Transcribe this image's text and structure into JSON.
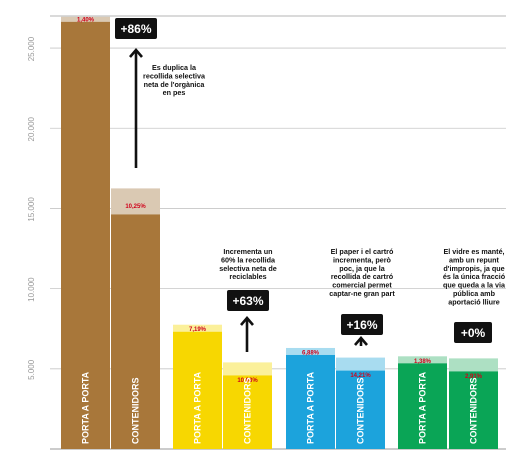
{
  "chart_data": {
    "type": "bar",
    "y_ticks": [
      "5.000",
      "10.000",
      "15.000",
      "20.000",
      "25.000"
    ],
    "ylim": [
      0,
      27000
    ],
    "grid": true,
    "groups": [
      {
        "color": "#a8773a",
        "imp_color": "#dac9b3",
        "badge": "+86%",
        "note": [
          "Es duplica la",
          "recollida selectiva",
          "neta de l'orgànica",
          "en pes"
        ],
        "bars": [
          {
            "label": "PORTA A PORTA",
            "total": 26950,
            "impropis_pct": "1,40%"
          },
          {
            "label": "CONTENIDORS",
            "total": 16250,
            "impropis_pct": "10,25%"
          }
        ]
      },
      {
        "color": "#f7d701",
        "imp_color": "#fbf09a",
        "badge": "+63%",
        "note": [
          "Incrementa un",
          "60% la recollida",
          "selectiva neta de",
          "reciclables"
        ],
        "bars": [
          {
            "label": "PORTA A PORTA",
            "total": 7750,
            "impropis_pct": "7,19%"
          },
          {
            "label": "CONTENIDORS",
            "total": 5400,
            "impropis_pct": "10,03%"
          }
        ]
      },
      {
        "color": "#1ca3dc",
        "imp_color": "#a8dcf0",
        "badge": "+16%",
        "note": [
          "El paper i el cartró",
          "incrementa, però",
          "poc, ja que la",
          "recollida de cartró",
          "comercial permet",
          "captar-ne gran part"
        ],
        "bars": [
          {
            "label": "PORTA A PORTA",
            "total": 6300,
            "impropis_pct": "6,88%"
          },
          {
            "label": "CONTENIDORS",
            "total": 5700,
            "impropis_pct": "14,21%"
          }
        ]
      },
      {
        "color": "#0aa556",
        "imp_color": "#ade0c3",
        "badge": "+0%",
        "note": [
          "El vidre es manté,",
          "amb un repunt",
          "d'impropis, ja que",
          "és la única fracció",
          "que queda a la via",
          "pública amb",
          "aportació lliure"
        ],
        "bars": [
          {
            "label": "PORTA A PORTA",
            "total": 5780,
            "impropis_pct": "1,38%"
          },
          {
            "label": "CONTENIDORS",
            "total": 5650,
            "impropis_pct": "2,91%"
          }
        ]
      }
    ]
  }
}
